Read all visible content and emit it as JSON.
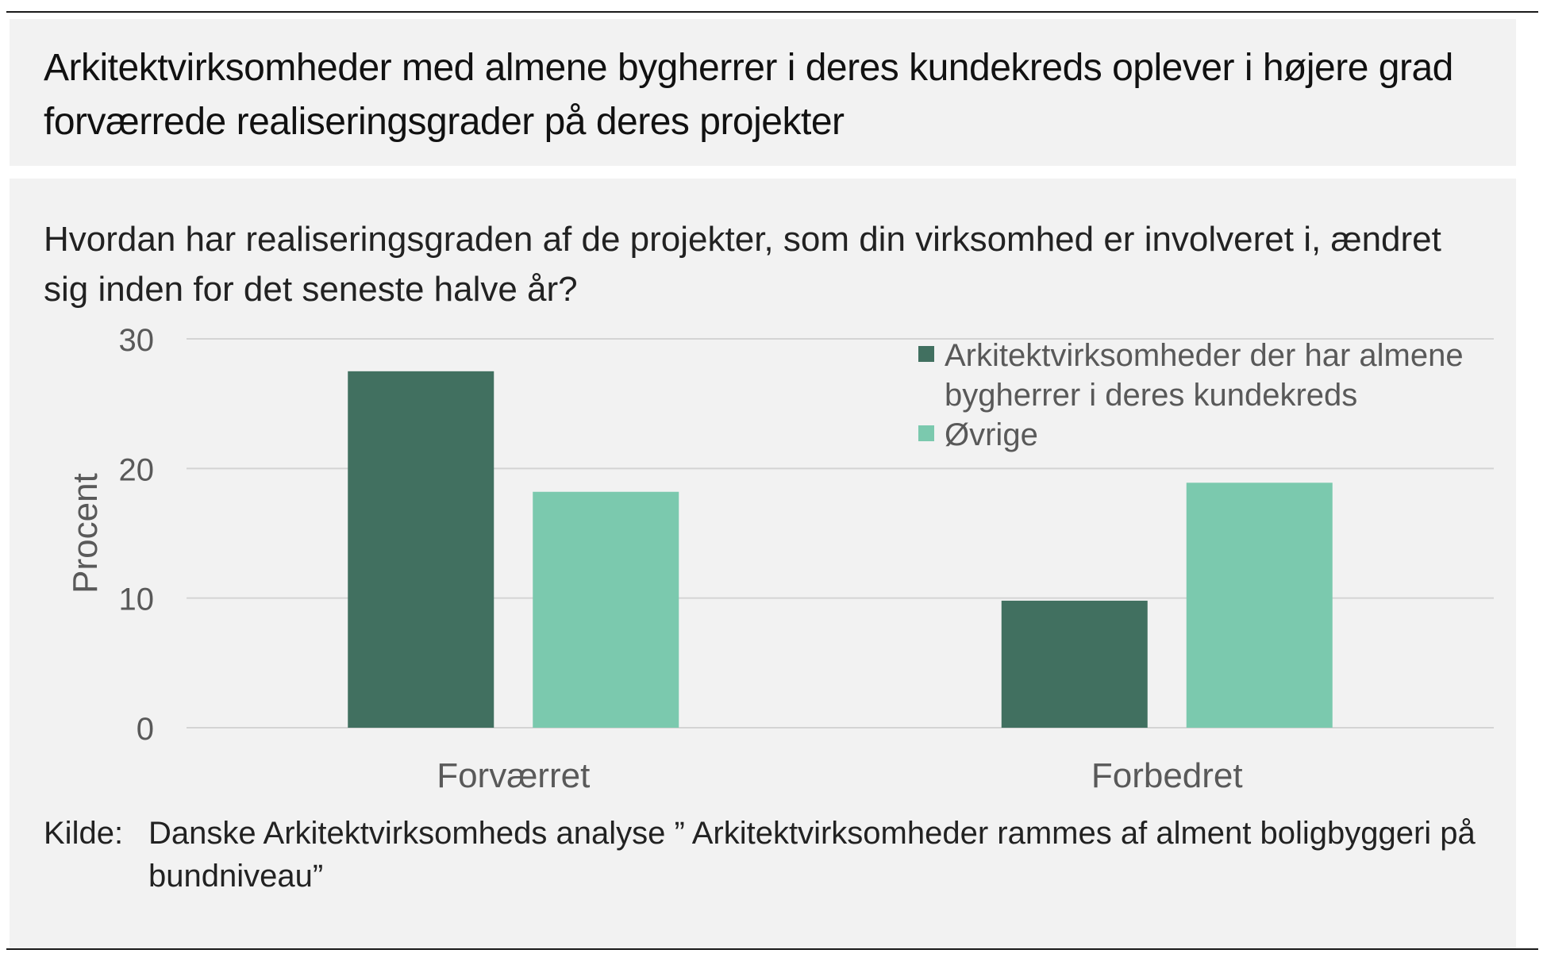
{
  "header": {
    "title": "Arkitektvirksomheder med almene bygherrer i deres kundekreds oplever i højere grad forværrede realiseringsgrader på deres projekter"
  },
  "chart_data": {
    "type": "bar",
    "title": "Hvordan har realiseringsgraden af de projekter, som din virksomhed er involveret i, ændret sig inden for det seneste halve år?",
    "xlabel": "",
    "ylabel": "Procent",
    "ylim": [
      0,
      30
    ],
    "yticks": [
      "0",
      "10",
      "20",
      "30"
    ],
    "grid": true,
    "legend_position": "top-right",
    "categories": [
      "Forværret",
      "Forbedret"
    ],
    "series": [
      {
        "name": "Arkitektvirksomheder der har almene bygherrer i deres kundekreds",
        "name_lines": [
          "Arkitektvirksomheder der har almene",
          "bygherrer i deres kundekreds"
        ],
        "color": "#417060",
        "values": [
          27.5,
          9.8
        ]
      },
      {
        "name": "Øvrige",
        "name_lines": [
          "Øvrige"
        ],
        "color": "#7bc9ae",
        "values": [
          18.2,
          18.9
        ]
      }
    ],
    "colors": {
      "grid": "#d4d4d4",
      "tick_text": "#595959",
      "legend_text": "#595959"
    }
  },
  "source": {
    "label": "Kilde:",
    "text": "Danske Arkitektvirksomheds analyse ” Arkitektvirksomheder rammes af alment boligbyggeri på bundniveau”"
  }
}
